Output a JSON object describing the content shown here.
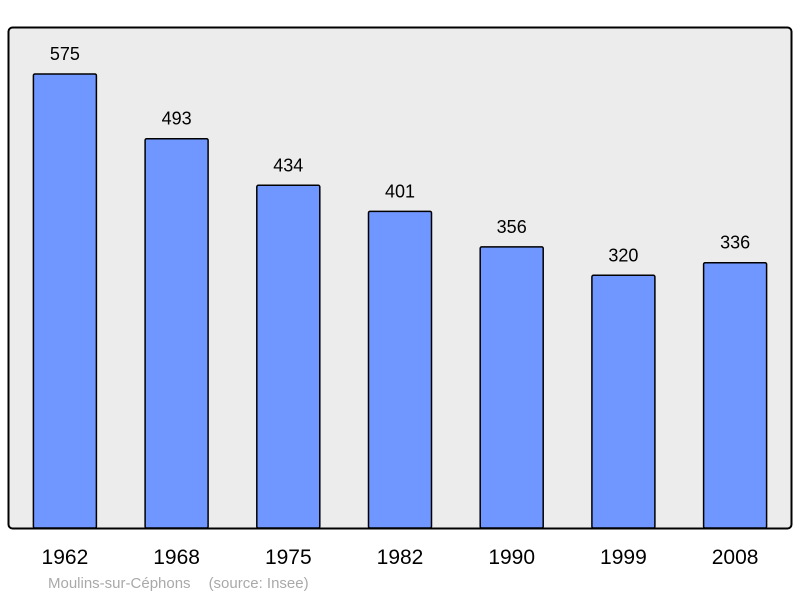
{
  "chart_data": {
    "type": "bar",
    "categories": [
      "1962",
      "1968",
      "1975",
      "1982",
      "1990",
      "1999",
      "2008"
    ],
    "values": [
      575,
      493,
      434,
      401,
      356,
      320,
      336
    ],
    "title": "",
    "xlabel": "",
    "ylabel": "",
    "ylim": [
      0,
      608
    ],
    "grid": false,
    "data_labels": true
  },
  "caption": {
    "place": "Moulins-sur-Céphons",
    "source": "(source: Insee)"
  },
  "colors": {
    "bar_fill": "#7096ff",
    "bar_stroke": "#000000",
    "plot_background": "#ececec",
    "frame": "#000000",
    "caption_text": "#a9a9a9"
  }
}
